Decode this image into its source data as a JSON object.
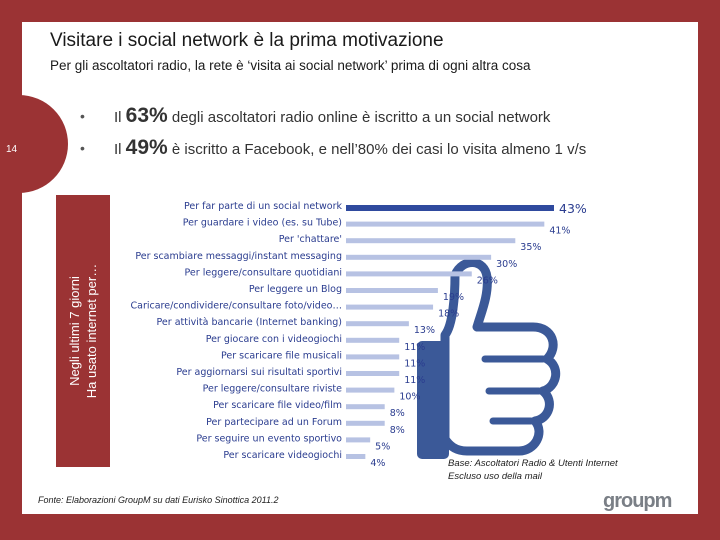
{
  "header": {
    "title": "Visitare i social network è la prima motivazione",
    "subtitle": "Per gli ascoltatori radio, la rete è ‘visita ai social network’ prima di ogni altra cosa"
  },
  "page_number": "14",
  "bullets": [
    {
      "dot": "•",
      "prefix": "Il ",
      "big": "63%",
      "rest": " degli ascoltatori radio online è iscritto a un social network"
    },
    {
      "dot": "•",
      "prefix": "Il ",
      "big": "49%",
      "rest": " è iscritto a Facebook, e nell’80% dei casi lo visita almeno 1 v/s"
    }
  ],
  "side_label": {
    "line1": "Negli ultimi 7 giorni",
    "line2": "Ha usato internet per…"
  },
  "chart_data": {
    "type": "bar",
    "orientation": "horizontal",
    "categories": [
      "Per far parte di un social network",
      "Per guardare i video (es. su Tube)",
      "Per 'chattare'",
      "Per scambiare messaggi/instant messaging",
      "Per leggere/consultare quotidiani",
      "Per leggere un Blog",
      "Caricare/condividere/consultare foto/video…",
      "Per attività bancarie (Internet banking)",
      "Per giocare con i videogiochi",
      "Per scaricare file musicali",
      "Per aggiornarsi sui risultati sportivi",
      "Per leggere/consultare riviste",
      "Per scaricare file video/film",
      "Per partecipare ad un Forum",
      "Per seguire un evento sportivo",
      "Per scaricare videogiochi"
    ],
    "values": [
      43,
      41,
      35,
      30,
      26,
      19,
      18,
      13,
      11,
      11,
      11,
      10,
      8,
      8,
      5,
      4
    ],
    "value_labels": [
      "43%",
      "41%",
      "35%",
      "30%",
      "26%",
      "19%",
      "18%",
      "13%",
      "11%",
      "11%",
      "11%",
      "10%",
      "8%",
      "8%",
      "5%",
      "4%"
    ],
    "xlim": [
      0,
      43
    ],
    "colors": {
      "highlight": "#2f4a9e",
      "bar": "#b7c2e3",
      "label": "#2a3c8f"
    }
  },
  "footnote": "Fonte: Elaborazioni GroupM su dati Eurisko Sinottica 2011.2",
  "base_note": {
    "line1": "Base: Ascoltatori Radio & Utenti Internet",
    "line2": "Escluso uso della mail"
  },
  "logo": "groupm",
  "colors": {
    "frame": "#9b3334",
    "thumb": "#3b5998"
  }
}
